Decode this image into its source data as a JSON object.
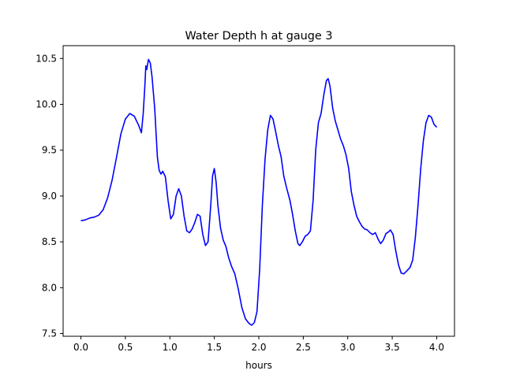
{
  "chart_data": {
    "type": "line",
    "title": "Water Depth h at gauge 3",
    "xlabel": "hours",
    "ylabel": "",
    "xlim": [
      -0.2,
      4.2
    ],
    "ylim": [
      7.47,
      10.64
    ],
    "grid": false,
    "x_ticks": [
      {
        "value": 0.0,
        "label": "0.0"
      },
      {
        "value": 0.5,
        "label": "0.5"
      },
      {
        "value": 1.0,
        "label": "1.0"
      },
      {
        "value": 1.5,
        "label": "1.5"
      },
      {
        "value": 2.0,
        "label": "2.0"
      },
      {
        "value": 2.5,
        "label": "2.5"
      },
      {
        "value": 3.0,
        "label": "3.0"
      },
      {
        "value": 3.5,
        "label": "3.5"
      },
      {
        "value": 4.0,
        "label": "4.0"
      }
    ],
    "y_ticks": [
      {
        "value": 7.5,
        "label": "7.5"
      },
      {
        "value": 8.0,
        "label": "8.0"
      },
      {
        "value": 8.5,
        "label": "8.5"
      },
      {
        "value": 9.0,
        "label": "9.0"
      },
      {
        "value": 9.5,
        "label": "9.5"
      },
      {
        "value": 10.0,
        "label": "10.0"
      },
      {
        "value": 10.5,
        "label": "10.5"
      }
    ],
    "series": [
      {
        "color": "#0000ff",
        "points": [
          [
            0.0,
            8.73
          ],
          [
            0.05,
            8.74
          ],
          [
            0.1,
            8.76
          ],
          [
            0.15,
            8.77
          ],
          [
            0.2,
            8.79
          ],
          [
            0.25,
            8.85
          ],
          [
            0.3,
            8.98
          ],
          [
            0.35,
            9.17
          ],
          [
            0.4,
            9.42
          ],
          [
            0.45,
            9.68
          ],
          [
            0.5,
            9.84
          ],
          [
            0.55,
            9.9
          ],
          [
            0.6,
            9.87
          ],
          [
            0.65,
            9.77
          ],
          [
            0.68,
            9.69
          ],
          [
            0.7,
            9.9
          ],
          [
            0.72,
            10.22
          ],
          [
            0.73,
            10.42
          ],
          [
            0.74,
            10.38
          ],
          [
            0.75,
            10.44
          ],
          [
            0.76,
            10.49
          ],
          [
            0.78,
            10.45
          ],
          [
            0.8,
            10.3
          ],
          [
            0.83,
            9.95
          ],
          [
            0.86,
            9.42
          ],
          [
            0.88,
            9.28
          ],
          [
            0.9,
            9.24
          ],
          [
            0.92,
            9.27
          ],
          [
            0.95,
            9.21
          ],
          [
            0.98,
            8.95
          ],
          [
            1.01,
            8.75
          ],
          [
            1.04,
            8.8
          ],
          [
            1.07,
            9.0
          ],
          [
            1.1,
            9.08
          ],
          [
            1.13,
            9.0
          ],
          [
            1.16,
            8.78
          ],
          [
            1.19,
            8.62
          ],
          [
            1.22,
            8.6
          ],
          [
            1.25,
            8.64
          ],
          [
            1.28,
            8.71
          ],
          [
            1.31,
            8.8
          ],
          [
            1.34,
            8.78
          ],
          [
            1.37,
            8.58
          ],
          [
            1.4,
            8.46
          ],
          [
            1.43,
            8.5
          ],
          [
            1.46,
            8.9
          ],
          [
            1.48,
            9.22
          ],
          [
            1.5,
            9.3
          ],
          [
            1.52,
            9.15
          ],
          [
            1.54,
            8.9
          ],
          [
            1.57,
            8.65
          ],
          [
            1.6,
            8.52
          ],
          [
            1.63,
            8.45
          ],
          [
            1.66,
            8.33
          ],
          [
            1.69,
            8.24
          ],
          [
            1.73,
            8.15
          ],
          [
            1.77,
            7.98
          ],
          [
            1.81,
            7.78
          ],
          [
            1.85,
            7.66
          ],
          [
            1.89,
            7.61
          ],
          [
            1.92,
            7.59
          ],
          [
            1.95,
            7.62
          ],
          [
            1.98,
            7.74
          ],
          [
            2.01,
            8.2
          ],
          [
            2.04,
            8.9
          ],
          [
            2.07,
            9.4
          ],
          [
            2.1,
            9.72
          ],
          [
            2.13,
            9.88
          ],
          [
            2.16,
            9.84
          ],
          [
            2.19,
            9.7
          ],
          [
            2.22,
            9.55
          ],
          [
            2.25,
            9.43
          ],
          [
            2.28,
            9.22
          ],
          [
            2.31,
            9.1
          ],
          [
            2.35,
            8.95
          ],
          [
            2.38,
            8.8
          ],
          [
            2.41,
            8.62
          ],
          [
            2.44,
            8.48
          ],
          [
            2.46,
            8.46
          ],
          [
            2.49,
            8.5
          ],
          [
            2.52,
            8.56
          ],
          [
            2.55,
            8.58
          ],
          [
            2.58,
            8.62
          ],
          [
            2.61,
            8.95
          ],
          [
            2.64,
            9.5
          ],
          [
            2.67,
            9.8
          ],
          [
            2.7,
            9.9
          ],
          [
            2.73,
            10.1
          ],
          [
            2.76,
            10.26
          ],
          [
            2.78,
            10.28
          ],
          [
            2.8,
            10.2
          ],
          [
            2.83,
            9.96
          ],
          [
            2.86,
            9.82
          ],
          [
            2.89,
            9.72
          ],
          [
            2.92,
            9.62
          ],
          [
            2.95,
            9.55
          ],
          [
            2.98,
            9.45
          ],
          [
            3.01,
            9.3
          ],
          [
            3.04,
            9.05
          ],
          [
            3.07,
            8.9
          ],
          [
            3.1,
            8.78
          ],
          [
            3.13,
            8.72
          ],
          [
            3.16,
            8.67
          ],
          [
            3.19,
            8.64
          ],
          [
            3.22,
            8.63
          ],
          [
            3.25,
            8.6
          ],
          [
            3.28,
            8.58
          ],
          [
            3.31,
            8.6
          ],
          [
            3.34,
            8.53
          ],
          [
            3.37,
            8.48
          ],
          [
            3.4,
            8.52
          ],
          [
            3.43,
            8.59
          ],
          [
            3.46,
            8.61
          ],
          [
            3.48,
            8.63
          ],
          [
            3.51,
            8.58
          ],
          [
            3.54,
            8.4
          ],
          [
            3.57,
            8.25
          ],
          [
            3.6,
            8.16
          ],
          [
            3.63,
            8.15
          ],
          [
            3.66,
            8.18
          ],
          [
            3.7,
            8.22
          ],
          [
            3.73,
            8.3
          ],
          [
            3.76,
            8.55
          ],
          [
            3.79,
            8.9
          ],
          [
            3.82,
            9.3
          ],
          [
            3.85,
            9.6
          ],
          [
            3.88,
            9.8
          ],
          [
            3.91,
            9.88
          ],
          [
            3.94,
            9.86
          ],
          [
            3.97,
            9.78
          ],
          [
            4.0,
            9.75
          ]
        ]
      }
    ]
  }
}
